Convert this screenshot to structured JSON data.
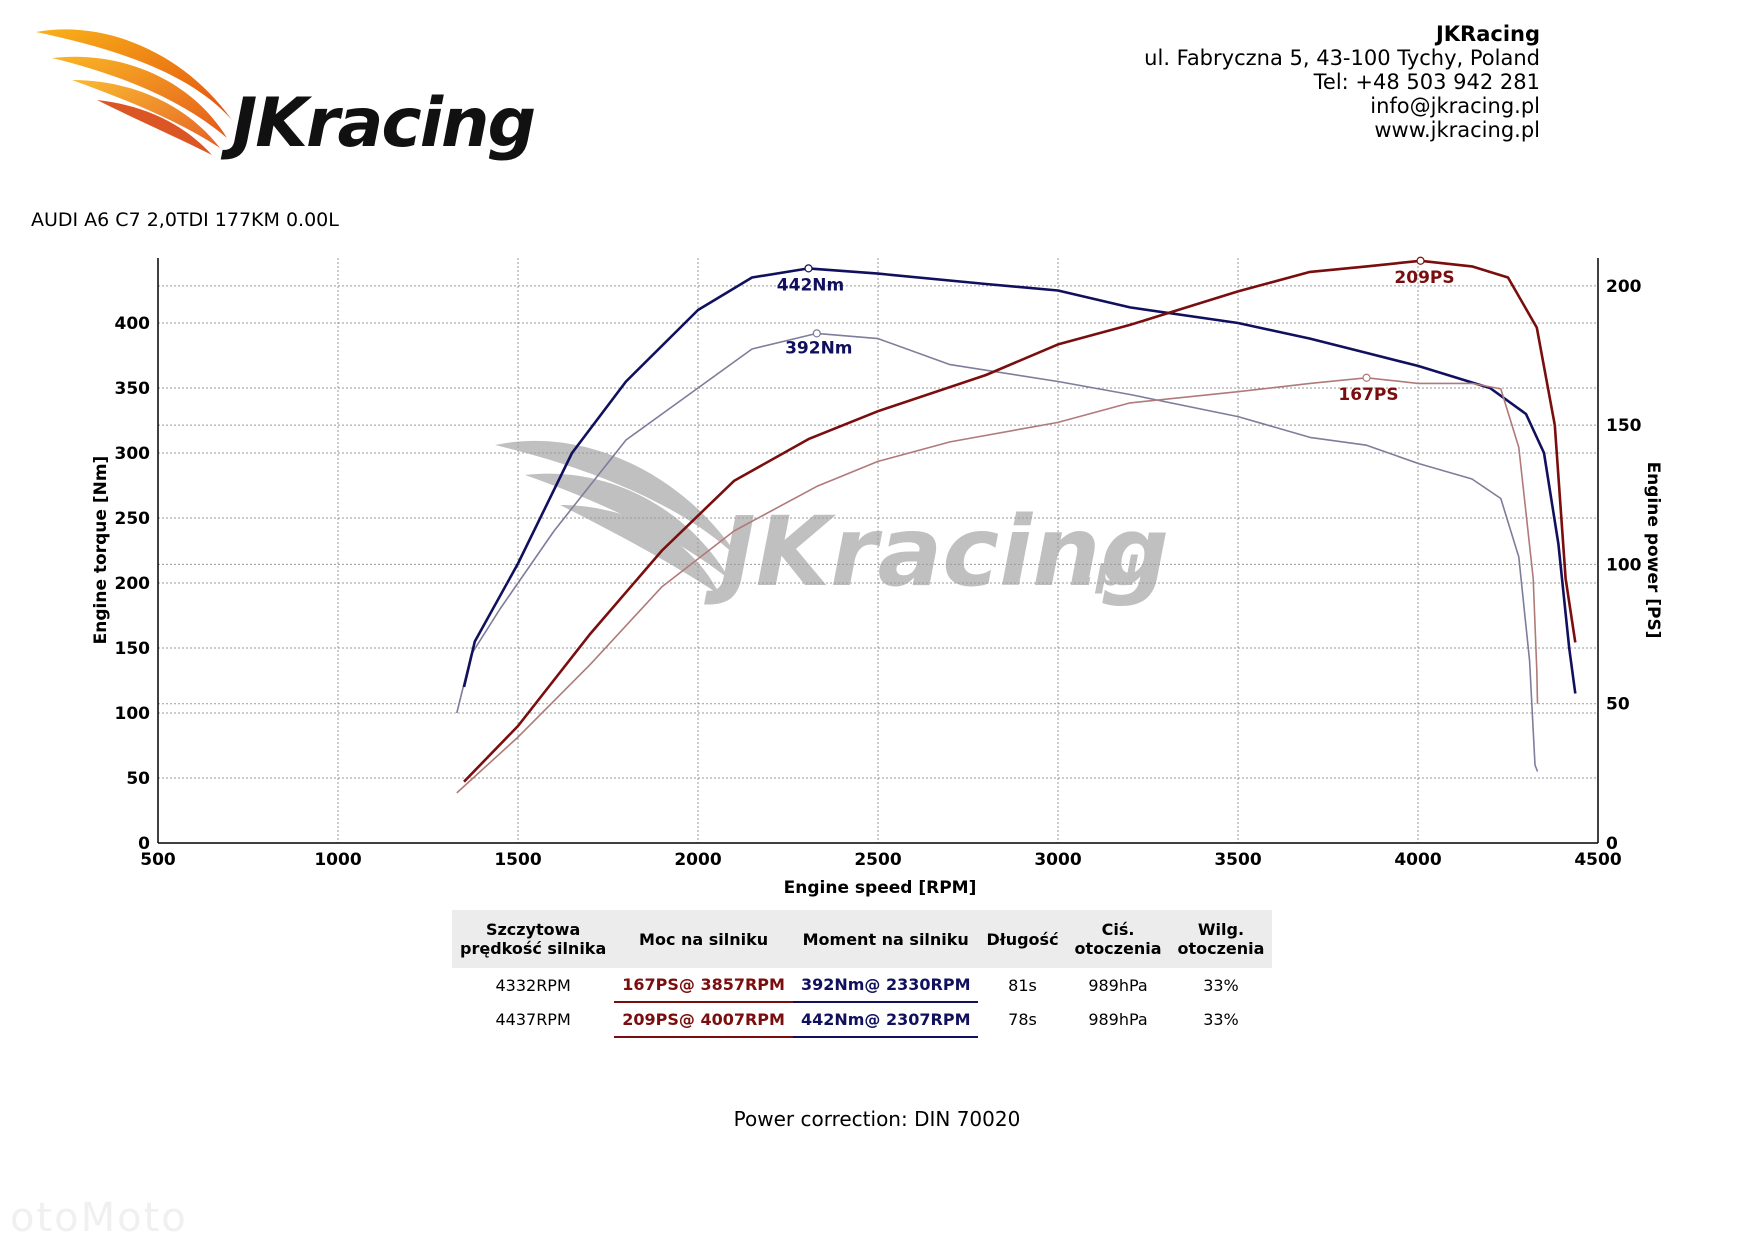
{
  "brand": {
    "logo_text": "JKracing",
    "watermark_text": "JKracing",
    "watermark_suffix": ".pl"
  },
  "company": {
    "name": "JKRacing",
    "address": "ul. Fabryczna 5, 43-100 Tychy, Poland",
    "phone": "Tel: +48 503 942 281",
    "email": "info@jkracing.pl",
    "website": "www.jkracing.pl"
  },
  "vehicle": "AUDI A6 C7 2,0TDI 177KM 0.00L",
  "colors": {
    "power_tuned": "#7a0d0d",
    "power_stock": "#b07a7a",
    "torque_tuned": "#10105e",
    "torque_stock": "#7d7d9c",
    "grid": "#9a9a9a",
    "header_bg": "#ececec",
    "logo_orange": "#ee7a1a"
  },
  "chart_data": {
    "type": "line",
    "xlabel": "Engine speed [RPM]",
    "ylabel_left": "Engine torque [Nm]",
    "ylabel_right": "Engine power [PS]",
    "xlim": [
      500,
      4500
    ],
    "ylim_left": [
      0,
      450
    ],
    "ylim_right": [
      0,
      210
    ],
    "x_ticks": [
      500,
      1000,
      1500,
      2000,
      2500,
      3000,
      3500,
      4000,
      4500
    ],
    "y_ticks_left": [
      0,
      50,
      100,
      150,
      200,
      250,
      300,
      350,
      400
    ],
    "y_ticks_right": [
      0,
      50,
      100,
      150,
      200
    ],
    "grid": true,
    "series": [
      {
        "id": "torque_stock",
        "axis": "left",
        "points": [
          [
            1330,
            100
          ],
          [
            1370,
            145
          ],
          [
            1450,
            180
          ],
          [
            1600,
            240
          ],
          [
            1800,
            310
          ],
          [
            2000,
            350
          ],
          [
            2150,
            380
          ],
          [
            2330,
            392
          ],
          [
            2500,
            388
          ],
          [
            2700,
            368
          ],
          [
            3000,
            355
          ],
          [
            3200,
            345
          ],
          [
            3500,
            328
          ],
          [
            3700,
            312
          ],
          [
            3857,
            306
          ],
          [
            4000,
            292
          ],
          [
            4150,
            280
          ],
          [
            4230,
            265
          ],
          [
            4280,
            220
          ],
          [
            4310,
            140
          ],
          [
            4325,
            60
          ],
          [
            4332,
            55
          ]
        ],
        "peak": {
          "x": 2330,
          "y": 392,
          "label": "392Nm"
        }
      },
      {
        "id": "torque_tuned",
        "axis": "left",
        "points": [
          [
            1350,
            120
          ],
          [
            1380,
            155
          ],
          [
            1500,
            215
          ],
          [
            1650,
            300
          ],
          [
            1800,
            355
          ],
          [
            2000,
            410
          ],
          [
            2150,
            435
          ],
          [
            2307,
            442
          ],
          [
            2500,
            438
          ],
          [
            2800,
            430
          ],
          [
            3000,
            425
          ],
          [
            3200,
            412
          ],
          [
            3500,
            400
          ],
          [
            3700,
            388
          ],
          [
            3857,
            377
          ],
          [
            4000,
            367
          ],
          [
            4200,
            350
          ],
          [
            4300,
            330
          ],
          [
            4350,
            300
          ],
          [
            4390,
            230
          ],
          [
            4420,
            150
          ],
          [
            4437,
            115
          ]
        ],
        "peak": {
          "x": 2307,
          "y": 442,
          "label": "442Nm"
        }
      },
      {
        "id": "power_stock",
        "axis": "right",
        "points": [
          [
            1330,
            18
          ],
          [
            1500,
            38
          ],
          [
            1700,
            64
          ],
          [
            1900,
            92
          ],
          [
            2100,
            112
          ],
          [
            2330,
            128
          ],
          [
            2500,
            137
          ],
          [
            2700,
            144
          ],
          [
            3000,
            151
          ],
          [
            3200,
            158
          ],
          [
            3500,
            162
          ],
          [
            3700,
            165
          ],
          [
            3857,
            167
          ],
          [
            4000,
            165
          ],
          [
            4150,
            165
          ],
          [
            4230,
            163
          ],
          [
            4280,
            142
          ],
          [
            4320,
            95
          ],
          [
            4330,
            62
          ],
          [
            4332,
            50
          ]
        ],
        "peak": {
          "x": 3857,
          "y": 167,
          "label": "167PS"
        }
      },
      {
        "id": "power_tuned",
        "axis": "right",
        "points": [
          [
            1350,
            22
          ],
          [
            1500,
            42
          ],
          [
            1700,
            75
          ],
          [
            1900,
            105
          ],
          [
            2100,
            130
          ],
          [
            2307,
            145
          ],
          [
            2500,
            155
          ],
          [
            2800,
            168
          ],
          [
            3000,
            179
          ],
          [
            3200,
            186
          ],
          [
            3500,
            198
          ],
          [
            3700,
            205
          ],
          [
            3857,
            207
          ],
          [
            4007,
            209
          ],
          [
            4150,
            207
          ],
          [
            4250,
            203
          ],
          [
            4330,
            185
          ],
          [
            4380,
            150
          ],
          [
            4410,
            95
          ],
          [
            4437,
            72
          ]
        ],
        "peak": {
          "x": 4007,
          "y": 209,
          "label": "209PS"
        }
      }
    ]
  },
  "results_table": {
    "headers": [
      "Szczytowa\nprędkość silnika",
      "Moc na silniku",
      "Moment na silniku",
      "Długość",
      "Ciś.\notoczenia",
      "Wilg.\notoczenia"
    ],
    "rows": [
      {
        "rpm": "4332RPM",
        "power": "167PS@ 3857RPM",
        "torque": "392Nm@ 2330RPM",
        "duration": "81s",
        "pressure": "989hPa",
        "humidity": "33%"
      },
      {
        "rpm": "4437RPM",
        "power": "209PS@ 4007RPM",
        "torque": "442Nm@ 2307RPM",
        "duration": "78s",
        "pressure": "989hPa",
        "humidity": "33%"
      }
    ]
  },
  "power_correction": "Power correction: DIN 70020",
  "bottom_watermark": "otoMoto"
}
